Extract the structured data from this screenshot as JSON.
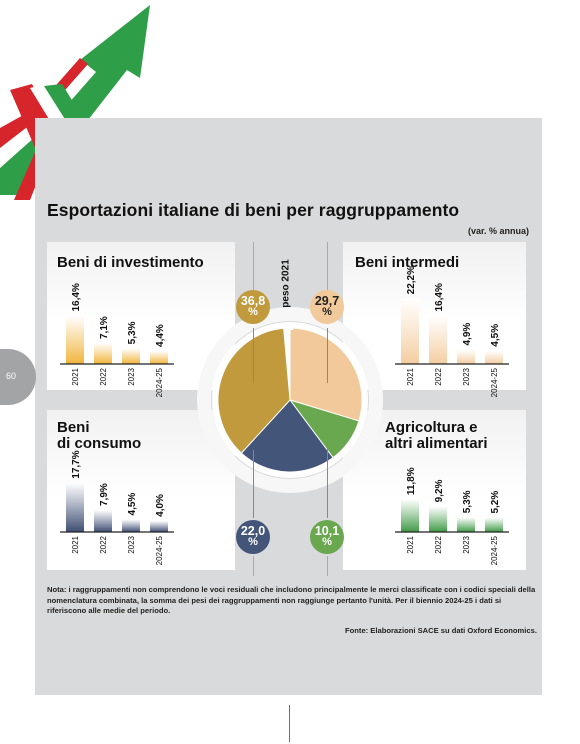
{
  "page_number": "60",
  "title": "Esportazioni italiane di beni per raggruppamento",
  "subtitle": "(var. % annua)",
  "center_label": "peso 2021",
  "colors": {
    "investimento": "#c19a3e",
    "intermedi": "#f2c99a",
    "consumo": "#44557a",
    "agricoltura": "#6aa84f",
    "bar_investimento": "#f0b43a",
    "bar_intermedi": "#f4cda0",
    "bar_consumo": "#3d4d72",
    "bar_agricoltura": "#3f9a45"
  },
  "weights": [
    {
      "key": "investimento",
      "value_label": "36,8",
      "unit": "%"
    },
    {
      "key": "intermedi",
      "value_label": "29,7",
      "unit": "%"
    },
    {
      "key": "consumo",
      "value_label": "22,0",
      "unit": "%"
    },
    {
      "key": "agricoltura",
      "value_label": "10,1",
      "unit": "%"
    }
  ],
  "chart_data": [
    {
      "type": "bar",
      "title": "Beni di investimento",
      "categories": [
        "2021",
        "2022",
        "2023",
        "2024-25"
      ],
      "values": [
        16.4,
        7.1,
        5.3,
        4.4
      ],
      "labels": [
        "16,4%",
        "7,1%",
        "5,3%",
        "4,4%"
      ]
    },
    {
      "type": "bar",
      "title": "Beni intermedi",
      "categories": [
        "2021",
        "2022",
        "2023",
        "2024-25"
      ],
      "values": [
        22.2,
        16.4,
        4.9,
        4.5
      ],
      "labels": [
        "22,2%",
        "16,4%",
        "4,9%",
        "4,5%"
      ]
    },
    {
      "type": "bar",
      "title_line1": "Beni",
      "title_line2": "di consumo",
      "categories": [
        "2021",
        "2022",
        "2023",
        "2024-25"
      ],
      "values": [
        17.7,
        7.9,
        4.5,
        4.0
      ],
      "labels": [
        "17,7%",
        "7,9%",
        "4,5%",
        "4,0%"
      ]
    },
    {
      "type": "bar",
      "title_line1": "Agricoltura e",
      "title_line2": "altri alimentari",
      "categories": [
        "2021",
        "2022",
        "2023",
        "2024-25"
      ],
      "values": [
        11.8,
        9.2,
        5.3,
        5.2
      ],
      "labels": [
        "11,8%",
        "9,2%",
        "5,3%",
        "5,2%"
      ]
    },
    {
      "type": "pie",
      "title": "peso 2021",
      "categories": [
        "Beni di investimento",
        "Beni intermedi",
        "Agricoltura e altri alimentari",
        "Beni di consumo"
      ],
      "values": [
        36.8,
        29.7,
        10.1,
        22.0
      ]
    }
  ],
  "note": "Nota: i raggruppamenti non comprendono le voci residuali che includono principalmente le merci classificate con i codici speciali della nomenclatura combinata, la somma dei pesi dei raggruppamenti non raggiunge pertanto l'unità. Per il biennio 2024-25 i dati si riferiscono alle medie del periodo.",
  "source": "Fonte: Elaborazioni SACE su dati Oxford Economics."
}
